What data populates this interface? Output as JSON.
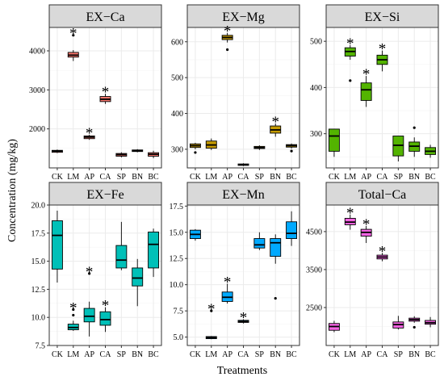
{
  "figure": {
    "ylabel": "Concentration (mg/kg)",
    "xlabel": "Treatments"
  },
  "chart_data": [
    {
      "type": "boxplot",
      "title": "EX−Ca",
      "categories": [
        "CK",
        "LM",
        "AP",
        "CA",
        "SP",
        "BN",
        "BC"
      ],
      "ylim": [
        1000,
        4600
      ],
      "yticks": [
        2000,
        3000,
        4000
      ],
      "grid": true,
      "series": [
        {
          "category": "CK",
          "color": "#f8766d",
          "min": 1380,
          "q1": 1400,
          "median": 1430,
          "q3": 1450,
          "max": 1470,
          "outliers": [],
          "significant": false
        },
        {
          "category": "LM",
          "color": "#f8766d",
          "min": 3740,
          "q1": 3840,
          "median": 3890,
          "q3": 3960,
          "max": 4020,
          "outliers": [
            4400
          ],
          "significant": true
        },
        {
          "category": "AP",
          "color": "#f8766d",
          "min": 1720,
          "q1": 1750,
          "median": 1790,
          "q3": 1820,
          "max": 1850,
          "outliers": [],
          "significant": true
        },
        {
          "category": "CA",
          "color": "#f8766d",
          "min": 2640,
          "q1": 2700,
          "median": 2760,
          "q3": 2830,
          "max": 2900,
          "outliers": [],
          "significant": true
        },
        {
          "category": "SP",
          "color": "#f8766d",
          "min": 1270,
          "q1": 1300,
          "median": 1340,
          "q3": 1370,
          "max": 1400,
          "outliers": [],
          "significant": false
        },
        {
          "category": "BN",
          "color": "#f8766d",
          "min": 1400,
          "q1": 1420,
          "median": 1440,
          "q3": 1460,
          "max": 1480,
          "outliers": [],
          "significant": false
        },
        {
          "category": "BC",
          "color": "#f8766d",
          "min": 1250,
          "q1": 1300,
          "median": 1350,
          "q3": 1390,
          "max": 1440,
          "outliers": [],
          "significant": false
        }
      ]
    },
    {
      "type": "boxplot",
      "title": "EX−Mg",
      "categories": [
        "CK",
        "LM",
        "AP",
        "CA",
        "SP",
        "BN",
        "BC"
      ],
      "ylim": [
        248,
        640
      ],
      "yticks": [
        300,
        400,
        500,
        600
      ],
      "grid": true,
      "series": [
        {
          "category": "CK",
          "color": "#c49a00",
          "min": 300,
          "q1": 305,
          "median": 310,
          "q3": 315,
          "max": 318,
          "outliers": [
            291
          ],
          "significant": false
        },
        {
          "category": "LM",
          "color": "#c49a00",
          "min": 298,
          "q1": 303,
          "median": 312,
          "q3": 323,
          "max": 330,
          "outliers": [],
          "significant": false
        },
        {
          "category": "AP",
          "color": "#c49a00",
          "min": 598,
          "q1": 606,
          "median": 612,
          "q3": 618,
          "max": 625,
          "outliers": [
            578
          ],
          "significant": true
        },
        {
          "category": "CA",
          "color": "#c49a00",
          "min": 253,
          "q1": 255,
          "median": 257,
          "q3": 259,
          "max": 261,
          "outliers": [],
          "significant": false
        },
        {
          "category": "SP",
          "color": "#c49a00",
          "min": 298,
          "q1": 302,
          "median": 305,
          "q3": 308,
          "max": 311,
          "outliers": [],
          "significant": false
        },
        {
          "category": "BN",
          "color": "#c49a00",
          "min": 335,
          "q1": 345,
          "median": 354,
          "q3": 365,
          "max": 372,
          "outliers": [],
          "significant": true
        },
        {
          "category": "BC",
          "color": "#c49a00",
          "min": 302,
          "q1": 306,
          "median": 310,
          "q3": 313,
          "max": 316,
          "outliers": [
            295
          ],
          "significant": false
        }
      ]
    },
    {
      "type": "boxplot",
      "title": "EX−Si",
      "categories": [
        "CK",
        "LM",
        "AP",
        "CA",
        "SP",
        "BN",
        "BC"
      ],
      "ylim": [
        226,
        530
      ],
      "yticks": [
        300,
        400,
        500
      ],
      "grid": true,
      "series": [
        {
          "category": "CK",
          "color": "#53b400",
          "min": 250,
          "q1": 262,
          "median": 295,
          "q3": 310,
          "max": 310,
          "outliers": [],
          "significant": false
        },
        {
          "category": "LM",
          "color": "#53b400",
          "min": 460,
          "q1": 468,
          "median": 478,
          "q3": 486,
          "max": 492,
          "outliers": [
            415
          ],
          "significant": true
        },
        {
          "category": "AP",
          "color": "#53b400",
          "min": 358,
          "q1": 372,
          "median": 395,
          "q3": 410,
          "max": 425,
          "outliers": [],
          "significant": true
        },
        {
          "category": "CA",
          "color": "#53b400",
          "min": 435,
          "q1": 450,
          "median": 460,
          "q3": 470,
          "max": 480,
          "outliers": [],
          "significant": true
        },
        {
          "category": "SP",
          "color": "#53b400",
          "min": 240,
          "q1": 252,
          "median": 275,
          "q3": 295,
          "max": 295,
          "outliers": [],
          "significant": false
        },
        {
          "category": "BN",
          "color": "#53b400",
          "min": 250,
          "q1": 262,
          "median": 273,
          "q3": 282,
          "max": 292,
          "outliers": [
            313
          ],
          "significant": false
        },
        {
          "category": "BC",
          "color": "#53b400",
          "min": 248,
          "q1": 255,
          "median": 262,
          "q3": 270,
          "max": 276,
          "outliers": [],
          "significant": false
        }
      ]
    },
    {
      "type": "boxplot",
      "title": "EX−Fe",
      "categories": [
        "CK",
        "LM",
        "AP",
        "CA",
        "SP",
        "BN",
        "BC"
      ],
      "ylim": [
        7.5,
        20.0
      ],
      "yticks": [
        7.5,
        10.0,
        12.5,
        15.0,
        17.5,
        20.0
      ],
      "ytick_labels": [
        "7.5",
        "10.0",
        "12.5",
        "15.0",
        "17.5",
        "20.0"
      ],
      "grid": true,
      "series": [
        {
          "category": "CK",
          "color": "#00c0b8",
          "min": 13.1,
          "q1": 14.3,
          "median": 17.3,
          "q3": 18.6,
          "max": 19.5,
          "outliers": [],
          "significant": false
        },
        {
          "category": "LM",
          "color": "#00c0b8",
          "min": 8.8,
          "q1": 8.9,
          "median": 9.1,
          "q3": 9.4,
          "max": 9.7,
          "outliers": [
            10.2,
            10.7
          ],
          "significant": true
        },
        {
          "category": "AP",
          "color": "#00c0b8",
          "min": 8.3,
          "q1": 9.6,
          "median": 10.1,
          "q3": 10.8,
          "max": 11.4,
          "outliers": [
            13.9
          ],
          "significant": true
        },
        {
          "category": "CA",
          "color": "#00c0b8",
          "min": 8.7,
          "q1": 9.3,
          "median": 9.8,
          "q3": 10.5,
          "max": 10.9,
          "outliers": [],
          "significant": true
        },
        {
          "category": "SP",
          "color": "#00c0b8",
          "min": 14.2,
          "q1": 14.4,
          "median": 15.1,
          "q3": 16.4,
          "max": 18.5,
          "outliers": [],
          "significant": false
        },
        {
          "category": "BN",
          "color": "#00c0b8",
          "min": 11.0,
          "q1": 12.8,
          "median": 13.5,
          "q3": 14.4,
          "max": 15.2,
          "outliers": [],
          "significant": false
        },
        {
          "category": "BC",
          "color": "#00c0b8",
          "min": 13.6,
          "q1": 14.4,
          "median": 16.5,
          "q3": 17.6,
          "max": 17.9,
          "outliers": [],
          "significant": false
        }
      ]
    },
    {
      "type": "boxplot",
      "title": "EX−Mn",
      "categories": [
        "CK",
        "LM",
        "AP",
        "CA",
        "SP",
        "BN",
        "BC"
      ],
      "ylim": [
        4.2,
        17.6
      ],
      "yticks": [
        5.0,
        7.5,
        10.0,
        12.5,
        15.0,
        17.5
      ],
      "ytick_labels": [
        "5.0",
        "7.5",
        "10.0",
        "12.5",
        "15.0",
        "17.5"
      ],
      "grid": true,
      "series": [
        {
          "category": "CK",
          "color": "#00a9ff",
          "min": 14.2,
          "q1": 14.4,
          "median": 14.8,
          "q3": 15.2,
          "max": 15.3,
          "outliers": [],
          "significant": false
        },
        {
          "category": "LM",
          "color": "#00a9ff",
          "min": 4.8,
          "q1": 4.85,
          "median": 4.95,
          "q3": 5.05,
          "max": 5.1,
          "outliers": [
            7.5
          ],
          "significant": true
        },
        {
          "category": "AP",
          "color": "#00a9ff",
          "min": 8.2,
          "q1": 8.4,
          "median": 8.8,
          "q3": 9.3,
          "max": 10.1,
          "outliers": [],
          "significant": true
        },
        {
          "category": "CA",
          "color": "#00a9ff",
          "min": 6.3,
          "q1": 6.4,
          "median": 6.5,
          "q3": 6.6,
          "max": 6.7,
          "outliers": [],
          "significant": true
        },
        {
          "category": "SP",
          "color": "#00a9ff",
          "min": 13.3,
          "q1": 13.5,
          "median": 13.8,
          "q3": 14.4,
          "max": 15.0,
          "outliers": [],
          "significant": false
        },
        {
          "category": "BN",
          "color": "#00a9ff",
          "min": 12.0,
          "q1": 12.7,
          "median": 14.0,
          "q3": 14.4,
          "max": 14.8,
          "outliers": [
            8.7
          ],
          "significant": false
        },
        {
          "category": "BC",
          "color": "#00a9ff",
          "min": 13.7,
          "q1": 14.4,
          "median": 14.9,
          "q3": 16.0,
          "max": 17.0,
          "outliers": [],
          "significant": false
        }
      ]
    },
    {
      "type": "boxplot",
      "title": "Total−Ca",
      "categories": [
        "CK",
        "LM",
        "AP",
        "CA",
        "SP",
        "BN",
        "BC"
      ],
      "ylim": [
        1500,
        5200
      ],
      "yticks": [
        2500,
        3500,
        4500
      ],
      "grid": true,
      "series": [
        {
          "category": "CK",
          "color": "#f564e3",
          "min": 1850,
          "q1": 1900,
          "median": 2000,
          "q3": 2080,
          "max": 2150,
          "outliers": [],
          "significant": false
        },
        {
          "category": "LM",
          "color": "#f564e3",
          "min": 4550,
          "q1": 4680,
          "median": 4750,
          "q3": 4850,
          "max": 4950,
          "outliers": [],
          "significant": true
        },
        {
          "category": "AP",
          "color": "#f564e3",
          "min": 4200,
          "q1": 4380,
          "median": 4480,
          "q3": 4560,
          "max": 4650,
          "outliers": [],
          "significant": true
        },
        {
          "category": "CA",
          "color": "#f564e3",
          "min": 3720,
          "q1": 3780,
          "median": 3830,
          "q3": 3880,
          "max": 3940,
          "outliers": [],
          "significant": true
        },
        {
          "category": "SP",
          "color": "#f564e3",
          "min": 1920,
          "q1": 1960,
          "median": 2050,
          "q3": 2120,
          "max": 2280,
          "outliers": [],
          "significant": false
        },
        {
          "category": "BN",
          "color": "#f564e3",
          "min": 2100,
          "q1": 2140,
          "median": 2180,
          "q3": 2220,
          "max": 2270,
          "outliers": [
            1980
          ],
          "significant": false
        },
        {
          "category": "BC",
          "color": "#f564e3",
          "min": 1980,
          "q1": 2060,
          "median": 2100,
          "q3": 2160,
          "max": 2250,
          "outliers": [],
          "significant": false
        }
      ]
    }
  ]
}
